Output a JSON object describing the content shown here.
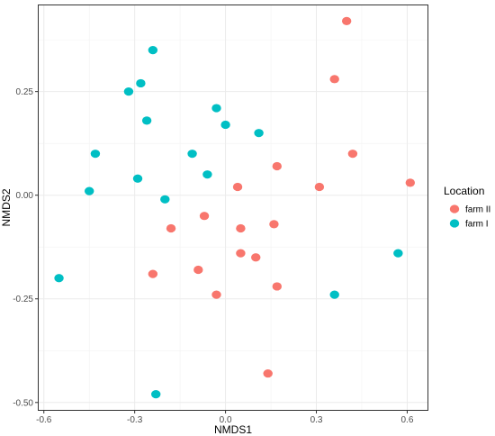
{
  "chart_data": {
    "type": "scatter",
    "xlabel": "NMDS1",
    "ylabel": "NMDS2",
    "xlim": [
      -0.62,
      0.67
    ],
    "ylim": [
      -0.52,
      0.46
    ],
    "x_ticks": [
      -0.6,
      -0.3,
      0.0,
      0.3,
      0.6
    ],
    "x_tick_labels": [
      "-0.6",
      "-0.3",
      "0.0",
      "0.3",
      "0.6"
    ],
    "y_ticks": [
      -0.5,
      -0.25,
      0.0,
      0.25
    ],
    "y_tick_labels": [
      "-0.50",
      "-0.25",
      "0.00",
      "0.25"
    ],
    "grid": true,
    "legend": {
      "title": "Location",
      "position": "right"
    },
    "series": [
      {
        "name": "farm II",
        "color": "#F8766D",
        "points": [
          {
            "x": 0.4,
            "y": 0.42
          },
          {
            "x": 0.36,
            "y": 0.28
          },
          {
            "x": 0.42,
            "y": 0.1
          },
          {
            "x": 0.17,
            "y": 0.07
          },
          {
            "x": 0.04,
            "y": 0.02
          },
          {
            "x": 0.31,
            "y": 0.02
          },
          {
            "x": 0.61,
            "y": 0.03
          },
          {
            "x": -0.07,
            "y": -0.05
          },
          {
            "x": -0.18,
            "y": -0.08
          },
          {
            "x": 0.05,
            "y": -0.08
          },
          {
            "x": 0.16,
            "y": -0.07
          },
          {
            "x": 0.05,
            "y": -0.14
          },
          {
            "x": 0.1,
            "y": -0.15
          },
          {
            "x": -0.09,
            "y": -0.18
          },
          {
            "x": -0.24,
            "y": -0.19
          },
          {
            "x": 0.17,
            "y": -0.22
          },
          {
            "x": -0.03,
            "y": -0.24
          },
          {
            "x": 0.14,
            "y": -0.43
          }
        ]
      },
      {
        "name": "farm I",
        "color": "#00BFC4",
        "points": [
          {
            "x": -0.24,
            "y": 0.35
          },
          {
            "x": -0.28,
            "y": 0.27
          },
          {
            "x": -0.32,
            "y": 0.25
          },
          {
            "x": -0.26,
            "y": 0.18
          },
          {
            "x": -0.03,
            "y": 0.21
          },
          {
            "x": 0.0,
            "y": 0.17
          },
          {
            "x": 0.11,
            "y": 0.15
          },
          {
            "x": -0.11,
            "y": 0.1
          },
          {
            "x": -0.06,
            "y": 0.05
          },
          {
            "x": -0.43,
            "y": 0.1
          },
          {
            "x": -0.29,
            "y": 0.04
          },
          {
            "x": -0.45,
            "y": 0.01
          },
          {
            "x": -0.2,
            "y": -0.01
          },
          {
            "x": -0.55,
            "y": -0.2
          },
          {
            "x": 0.57,
            "y": -0.14
          },
          {
            "x": 0.36,
            "y": -0.24
          },
          {
            "x": -0.23,
            "y": -0.48
          }
        ]
      }
    ]
  }
}
